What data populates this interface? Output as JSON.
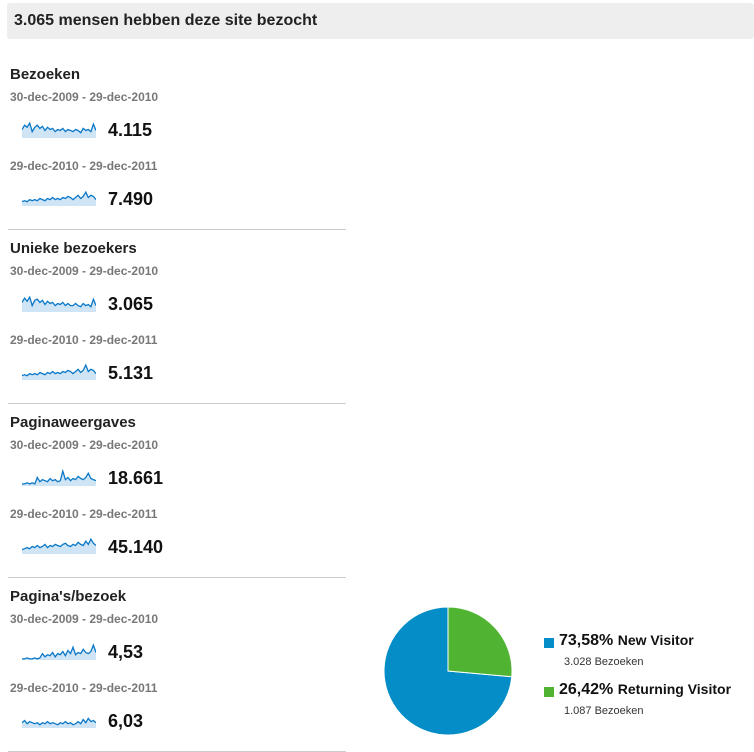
{
  "header": {
    "title": "3.065 mensen hebben deze site bezocht"
  },
  "metrics": [
    {
      "title": "Bezoeken",
      "periods": [
        {
          "range": "30-dec-2009 - 29-dec-2010",
          "value": "4.115",
          "spark": [
            8,
            12,
            10,
            14,
            6,
            10,
            12,
            9,
            11,
            7,
            10,
            8,
            9,
            6,
            8,
            7,
            9,
            6,
            8,
            7,
            6,
            8,
            7,
            5,
            9,
            7,
            8,
            6,
            13,
            7
          ]
        },
        {
          "range": "29-dec-2010 - 29-dec-2011",
          "value": "7.490",
          "spark": [
            4,
            5,
            4,
            6,
            5,
            6,
            5,
            7,
            6,
            5,
            7,
            6,
            8,
            6,
            7,
            6,
            8,
            7,
            9,
            8,
            6,
            8,
            10,
            7,
            9,
            13,
            8,
            10,
            9,
            6
          ]
        }
      ]
    },
    {
      "title": "Unieke bezoekers",
      "periods": [
        {
          "range": "30-dec-2009 - 29-dec-2010",
          "value": "3.065",
          "spark": [
            9,
            13,
            10,
            14,
            6,
            11,
            12,
            9,
            11,
            7,
            10,
            8,
            9,
            6,
            8,
            7,
            9,
            6,
            8,
            6,
            6,
            8,
            6,
            5,
            8,
            6,
            7,
            5,
            12,
            6
          ]
        },
        {
          "range": "29-dec-2010 - 29-dec-2011",
          "value": "5.131",
          "spark": [
            4,
            5,
            4,
            6,
            5,
            6,
            5,
            7,
            6,
            5,
            7,
            6,
            8,
            6,
            7,
            6,
            8,
            7,
            9,
            8,
            6,
            8,
            10,
            7,
            9,
            14,
            8,
            10,
            9,
            6
          ]
        }
      ]
    },
    {
      "title": "Paginaweergaves",
      "periods": [
        {
          "range": "30-dec-2009 - 29-dec-2010",
          "value": "18.661",
          "spark": [
            2,
            2,
            3,
            2,
            3,
            2,
            8,
            4,
            6,
            5,
            4,
            7,
            5,
            6,
            4,
            5,
            14,
            6,
            8,
            5,
            7,
            6,
            9,
            7,
            6,
            8,
            12,
            7,
            6,
            5
          ]
        },
        {
          "range": "29-dec-2010 - 29-dec-2011",
          "value": "45.140",
          "spark": [
            4,
            5,
            6,
            5,
            7,
            6,
            8,
            6,
            7,
            9,
            6,
            8,
            7,
            9,
            8,
            7,
            9,
            10,
            8,
            7,
            9,
            8,
            11,
            9,
            8,
            12,
            9,
            14,
            10,
            8
          ]
        }
      ]
    },
    {
      "title": "Pagina's/bezoek",
      "periods": [
        {
          "range": "30-dec-2009 - 29-dec-2010",
          "value": "4,53",
          "spark": [
            1,
            1,
            2,
            1,
            1,
            2,
            1,
            2,
            6,
            3,
            5,
            4,
            7,
            3,
            6,
            5,
            8,
            4,
            9,
            6,
            12,
            5,
            7,
            6,
            10,
            7,
            6,
            8,
            14,
            7
          ]
        },
        {
          "range": "29-dec-2010 - 29-dec-2011",
          "value": "6,03",
          "spark": [
            5,
            7,
            4,
            6,
            5,
            4,
            5,
            3,
            5,
            4,
            6,
            4,
            5,
            4,
            3,
            5,
            4,
            6,
            4,
            5,
            3,
            4,
            6,
            4,
            8,
            5,
            9,
            6,
            7,
            5
          ]
        }
      ]
    }
  ],
  "pie": {
    "segments": [
      {
        "percent": 73.58,
        "label": "73,58%",
        "name": "New Visitor",
        "sub": "3.028 Bezoeken",
        "color": "#058dc7"
      },
      {
        "percent": 26.42,
        "label": "26,42%",
        "name": "Returning Visitor",
        "sub": "1.087 Bezoeken",
        "color": "#50b432"
      }
    ]
  },
  "colors": {
    "spark": "#0a78c8",
    "header_bg": "#eeeeee",
    "divider": "#cccccc"
  }
}
